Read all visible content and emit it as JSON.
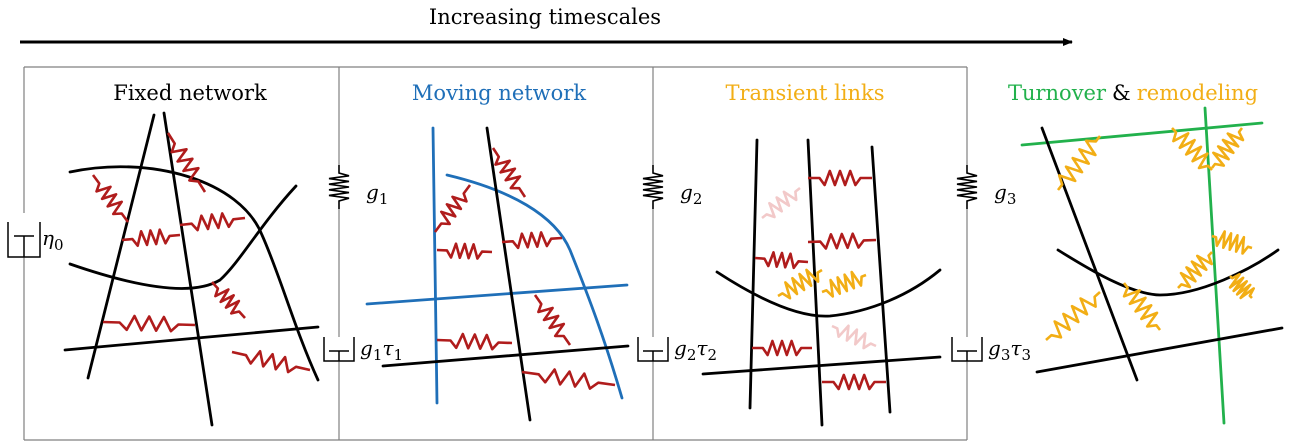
{
  "header": {
    "timescale_label": "Increasing timescales"
  },
  "colors": {
    "fixed": "#000000",
    "moving": "#1f6fb8",
    "transient": "#f2ae15",
    "turnover": "#22b14c",
    "remodeling": "#f2ae15",
    "spring_red": "#b01c1c",
    "spring_faded": "#f2c9c9",
    "frame": "#808080"
  },
  "panels": [
    {
      "title": "Fixed network"
    },
    {
      "title": "Moving network"
    },
    {
      "title": "Transient links"
    },
    {
      "title_part1": "Turnover",
      "title_joiner": "&",
      "title_part2": "remodeling"
    }
  ],
  "elements": {
    "dashpot_0": {
      "sym": "η",
      "sub": "0"
    },
    "spring_1": {
      "sym": "g",
      "sub": "1"
    },
    "spring_2": {
      "sym": "g",
      "sub": "2"
    },
    "spring_3": {
      "sym": "g",
      "sub": "3"
    },
    "dashpot_1": {
      "sym1": "g",
      "sub1": "1",
      "sym2": "τ",
      "sub2": "1"
    },
    "dashpot_2": {
      "sym1": "g",
      "sub1": "2",
      "sym2": "τ",
      "sub2": "2"
    },
    "dashpot_3": {
      "sym1": "g",
      "sub1": "3",
      "sym2": "τ",
      "sub2": "3"
    }
  }
}
